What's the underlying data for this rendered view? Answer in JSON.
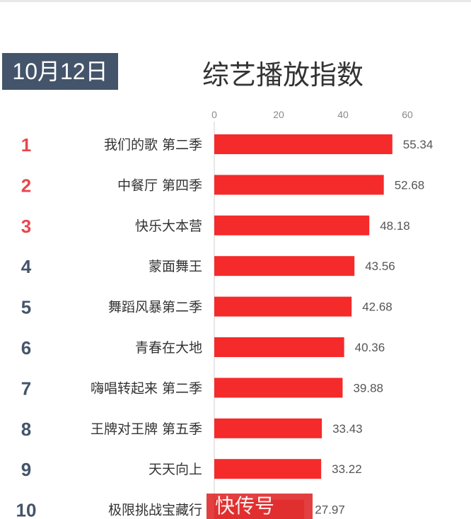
{
  "date_badge": "10月12日",
  "chart_data": {
    "type": "bar",
    "orientation": "horizontal",
    "title": "综艺播放指数",
    "xlim": [
      0,
      60
    ],
    "ticks": [
      0,
      20,
      40,
      60
    ],
    "grid": false,
    "ranks": [
      "1",
      "2",
      "3",
      "4",
      "5",
      "6",
      "7",
      "8",
      "9",
      "10"
    ],
    "categories": [
      "我们的歌 第二季",
      "中餐厅 第四季",
      "快乐大本营",
      "蒙面舞王",
      "舞蹈风暴第二季",
      "青春在大地",
      "嗨唱转起来 第二季",
      "王牌对王牌 第五季",
      "天天向上",
      "极限挑战宝藏行"
    ],
    "values": [
      55.34,
      52.68,
      48.18,
      43.56,
      42.68,
      40.36,
      39.88,
      33.43,
      33.22,
      27.97
    ],
    "value_labels": [
      "55.34",
      "52.68",
      "48.18",
      "43.56",
      "42.68",
      "40.36",
      "39.88",
      "33.43",
      "33.22",
      "27.97"
    ],
    "bar_color": "#f52a2a",
    "rank_colors": {
      "top": "#e8474d",
      "rest": "#44546a"
    }
  },
  "watermark": "快传号"
}
